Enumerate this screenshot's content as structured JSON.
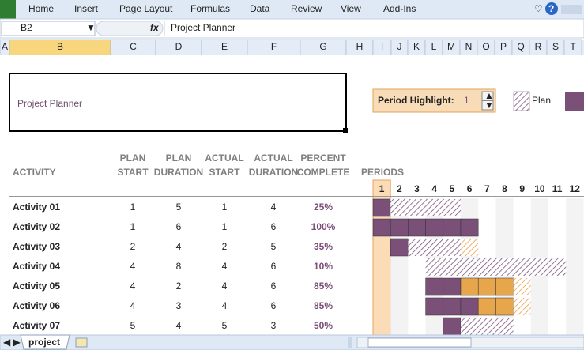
{
  "ribbon": {
    "tabs": [
      "Home",
      "Insert",
      "Page Layout",
      "Formulas",
      "Data",
      "Review",
      "View",
      "Add-Ins"
    ]
  },
  "formula_bar": {
    "name_box": "B2",
    "fx": "fx",
    "formula": "Project Planner"
  },
  "column_headers": [
    "A",
    "B",
    "C",
    "D",
    "E",
    "F",
    "G",
    "H",
    "I",
    "J",
    "K",
    "L",
    "M",
    "N",
    "O",
    "P",
    "Q",
    "R",
    "S",
    "T"
  ],
  "title": "Project Planner",
  "period_highlight": {
    "label": "Period Highlight:",
    "value": 1
  },
  "legend": {
    "plan": "Plan"
  },
  "table": {
    "headers": [
      [
        "ACTIVITY"
      ],
      [
        "PLAN",
        "START"
      ],
      [
        "PLAN",
        "DURATION"
      ],
      [
        "ACTUAL",
        "START"
      ],
      [
        "ACTUAL",
        "DURATION"
      ],
      [
        "PERCENT",
        "COMPLETE"
      ],
      [
        "PERIODS"
      ]
    ],
    "periods": [
      1,
      2,
      3,
      4,
      5,
      6,
      7,
      8,
      9,
      10,
      11,
      12
    ],
    "rows": [
      [
        "Activity 01",
        1,
        5,
        1,
        4,
        "25%"
      ],
      [
        "Activity 02",
        1,
        6,
        1,
        6,
        "100%"
      ],
      [
        "Activity 03",
        2,
        4,
        2,
        5,
        "35%"
      ],
      [
        "Activity 04",
        4,
        8,
        4,
        6,
        "10%"
      ],
      [
        "Activity 05",
        4,
        2,
        4,
        6,
        "85%"
      ],
      [
        "Activity 06",
        4,
        3,
        4,
        6,
        "85%"
      ],
      [
        "Activity 07",
        5,
        4,
        5,
        3,
        "50%"
      ]
    ]
  },
  "sheet_tabs": [
    "project"
  ]
}
